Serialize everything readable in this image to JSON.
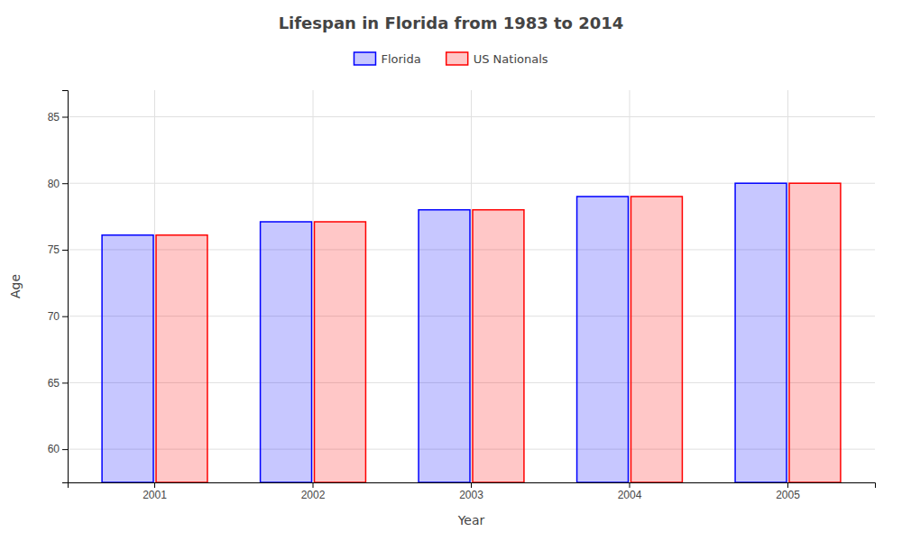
{
  "chart_data": {
    "type": "bar",
    "title": "Lifespan in Florida from 1983 to 2014",
    "xlabel": "Year",
    "ylabel": "Age",
    "categories": [
      "2001",
      "2002",
      "2003",
      "2004",
      "2005"
    ],
    "series": [
      {
        "name": "Florida",
        "color": "#0000ff",
        "values": [
          76.1,
          77.1,
          78.0,
          79.0,
          80.0
        ]
      },
      {
        "name": "US Nationals",
        "color": "#ff0000",
        "values": [
          76.1,
          77.1,
          78.0,
          79.0,
          80.0
        ]
      }
    ],
    "ylim": [
      57.5,
      87
    ],
    "yticks": [
      60,
      65,
      70,
      75,
      80,
      85
    ],
    "grid": true,
    "legend": "top"
  }
}
